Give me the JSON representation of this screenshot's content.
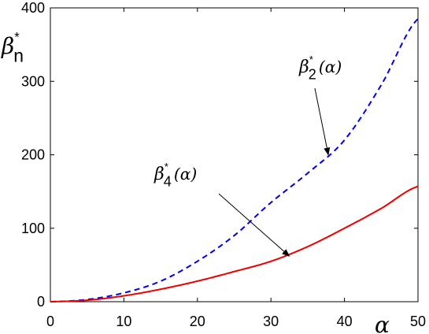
{
  "chart_data": {
    "type": "line",
    "xlabel": "α",
    "ylabel": {
      "base": "β",
      "sup": "*",
      "sub": "n"
    },
    "xlim": [
      0,
      50
    ],
    "ylim": [
      0,
      400
    ],
    "xticks": [
      0,
      10,
      20,
      30,
      40,
      50
    ],
    "yticks": [
      0,
      100,
      200,
      300,
      400
    ],
    "grid": false,
    "series": [
      {
        "key": "beta2",
        "style": "dashed",
        "color": "#0000ee",
        "x": [
          0,
          5,
          10,
          15,
          20,
          25,
          30,
          35,
          40,
          45,
          50
        ],
        "y": [
          0,
          3,
          12,
          28,
          55,
          90,
          135,
          175,
          220,
          295,
          385
        ]
      },
      {
        "key": "beta4",
        "style": "solid",
        "color": "#ee0000",
        "x": [
          0,
          5,
          10,
          15,
          20,
          25,
          30,
          35,
          40,
          45,
          50
        ],
        "y": [
          0,
          2,
          8,
          17,
          28,
          41,
          55,
          75,
          100,
          127,
          157
        ]
      }
    ],
    "annotations": [
      {
        "series": "beta2",
        "base": "β",
        "sup": "*",
        "sub": "2",
        "arg": "(α)",
        "point": [
          37.8,
          200
        ]
      },
      {
        "series": "beta4",
        "base": "β",
        "sup": "*",
        "sub": "4",
        "arg": "(α)",
        "point": [
          32.5,
          62
        ]
      }
    ]
  }
}
